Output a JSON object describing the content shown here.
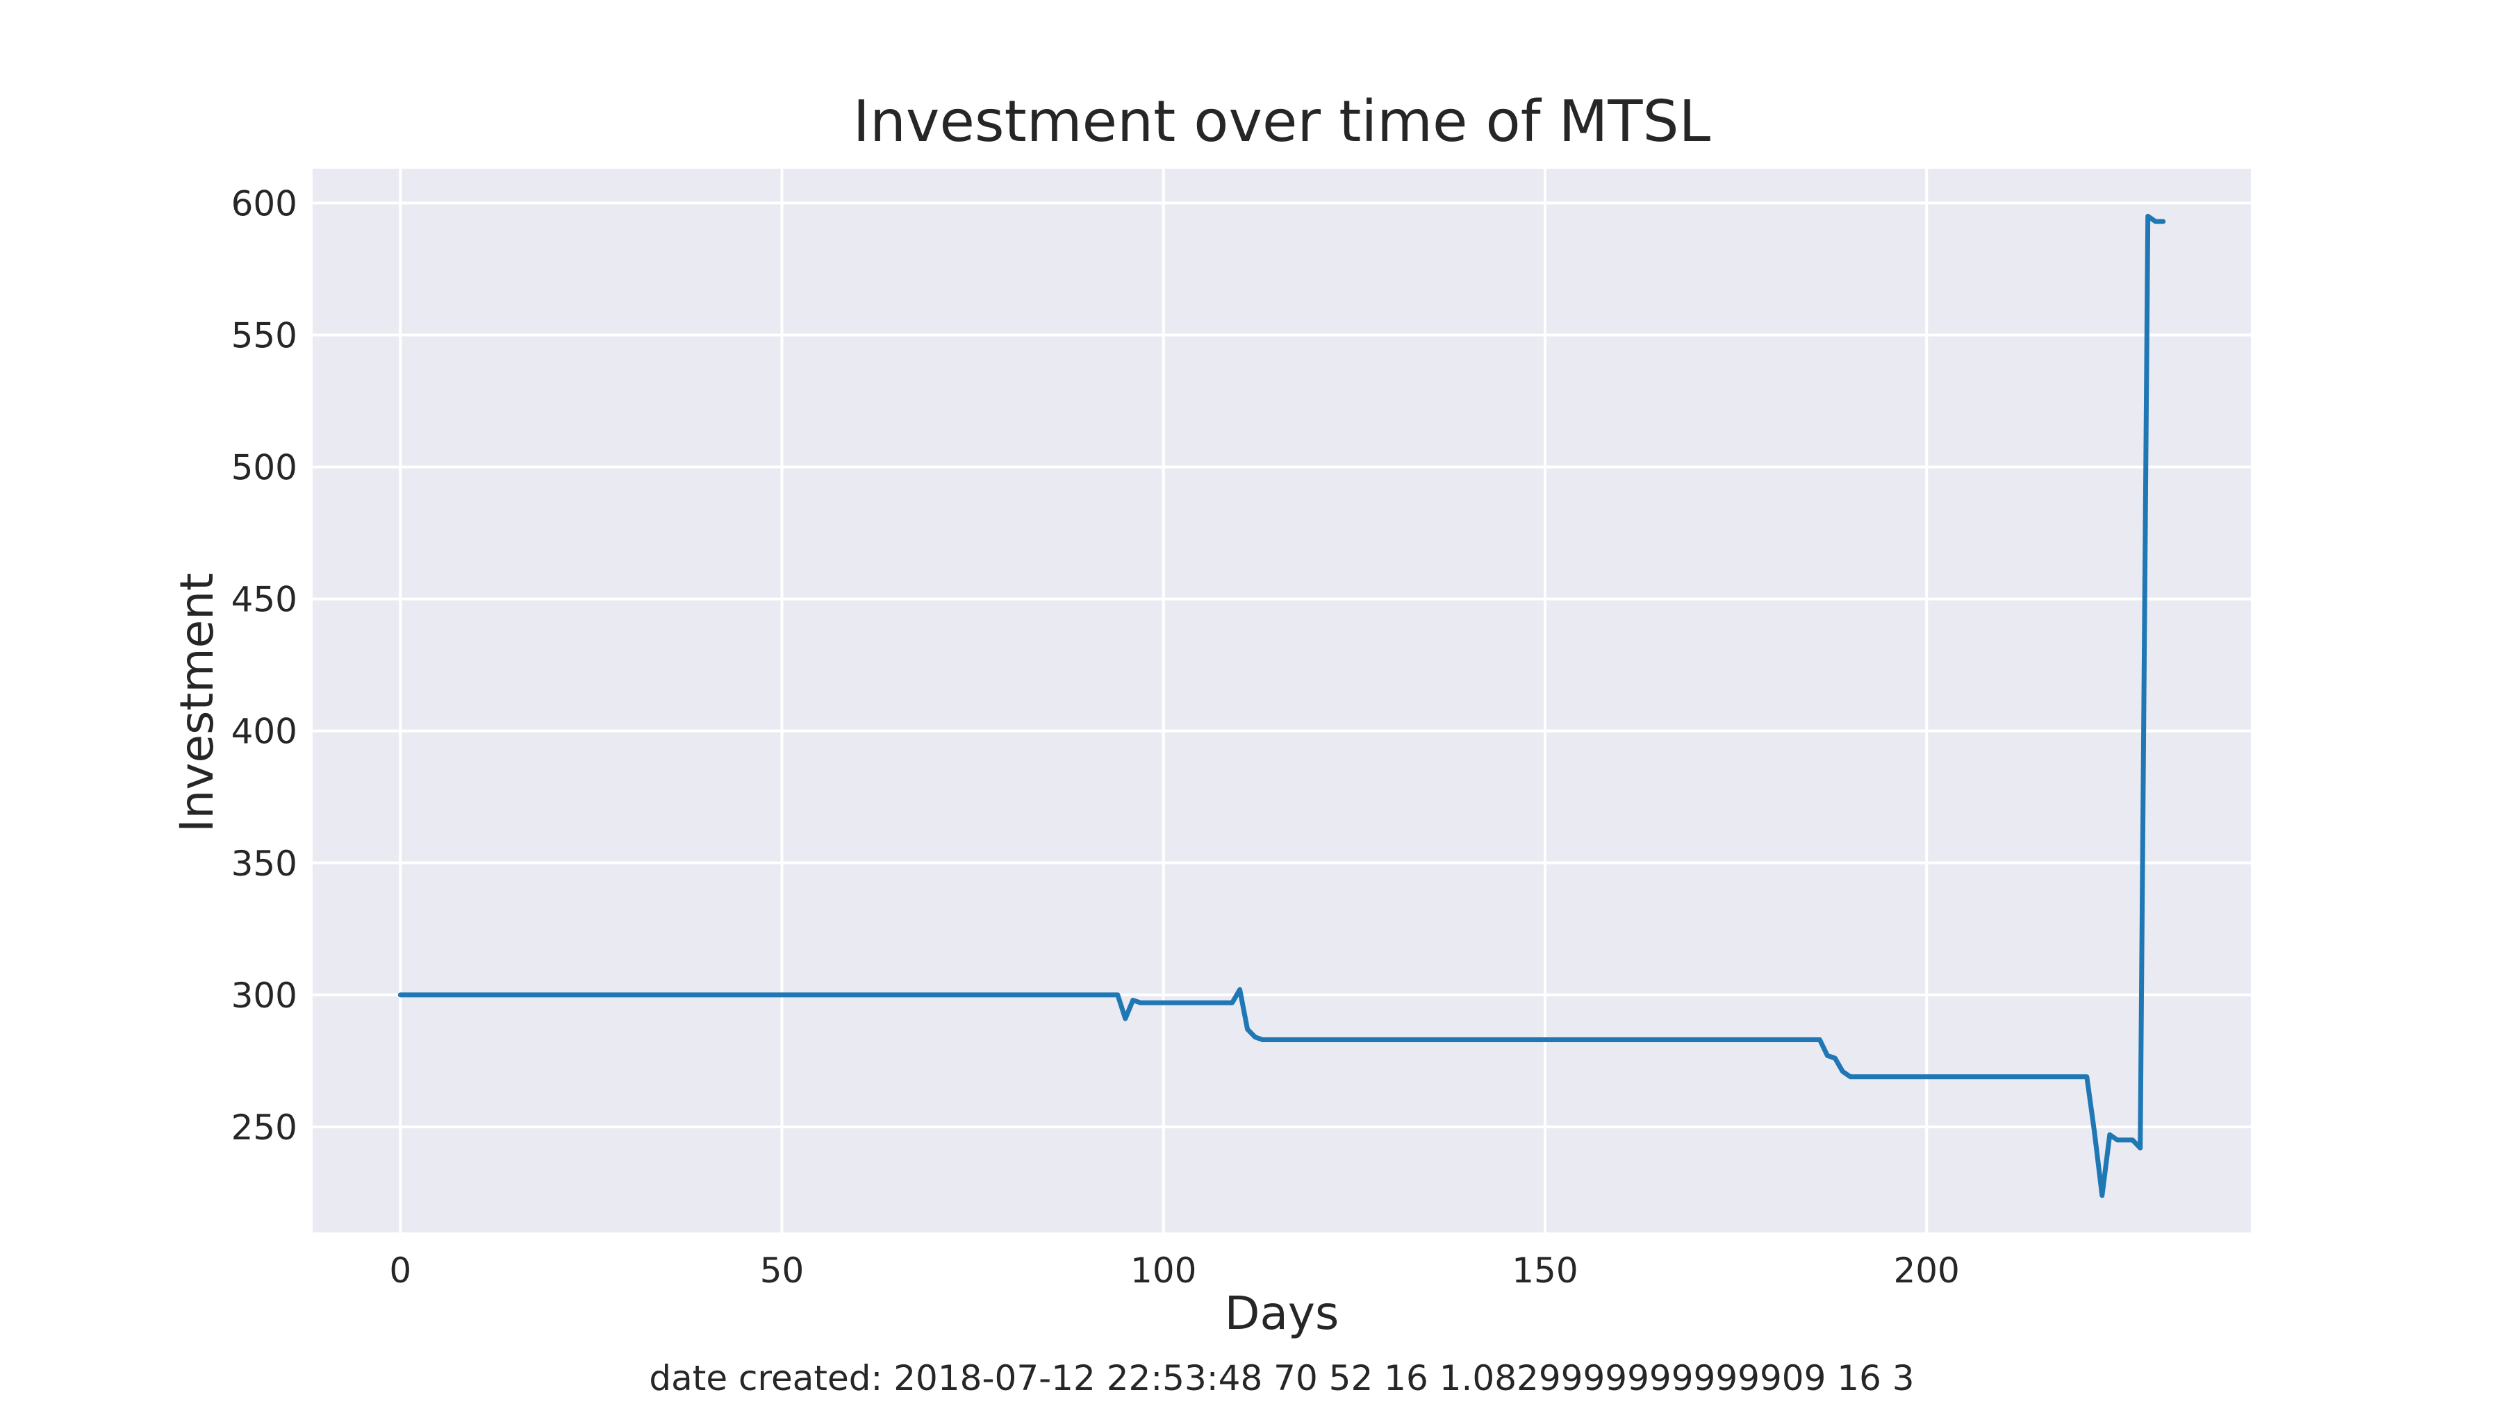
{
  "chart_data": {
    "type": "line",
    "title": "Investment over time of MTSL",
    "xlabel": "Days",
    "ylabel": "Investment",
    "xlim": [
      -11.5,
      242.5
    ],
    "ylim": [
      210,
      613
    ],
    "xticks": [
      0,
      50,
      100,
      150,
      200
    ],
    "yticks": [
      250,
      300,
      350,
      400,
      450,
      500,
      550,
      600
    ],
    "grid": true,
    "colors": {
      "background": "#EAEAF2",
      "grid": "#FFFFFF",
      "line": "#1F77B4"
    },
    "series": [
      {
        "x": [
          0,
          94,
          95,
          96,
          97,
          109,
          110,
          111,
          112,
          113,
          186,
          187,
          188,
          189,
          190,
          221,
          222,
          223,
          224,
          225,
          227,
          228,
          229,
          230,
          231
        ],
        "y": [
          300,
          300,
          291,
          298,
          297,
          297,
          302,
          287,
          284,
          283,
          283,
          277,
          276,
          271,
          269,
          269,
          248,
          224,
          247,
          245,
          245,
          242,
          595,
          593,
          593
        ]
      }
    ]
  },
  "footer_text": "date created: 2018-07-12 22:53:48 70 52 16 1.0829999999999909 16 3"
}
